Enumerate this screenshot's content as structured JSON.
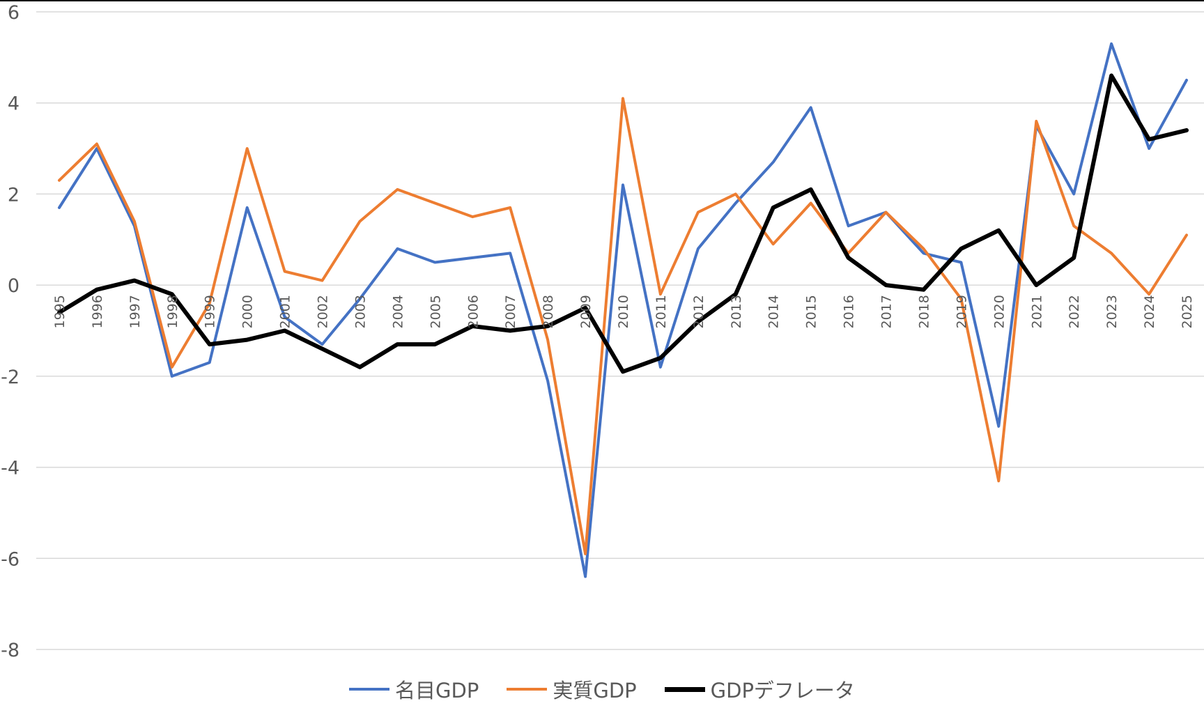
{
  "chart_data": {
    "type": "line",
    "title": "",
    "xlabel": "",
    "ylabel": "",
    "ylim": [
      -8,
      6
    ],
    "yticks": [
      6,
      4,
      2,
      0,
      -2,
      -4,
      -6,
      -8
    ],
    "grid": true,
    "legend_position": "bottom",
    "categories": [
      "1995",
      "1996",
      "1997",
      "1998",
      "1999",
      "2000",
      "2001",
      "2002",
      "2003",
      "2004",
      "2005",
      "2006",
      "2007",
      "2008",
      "2009",
      "2010",
      "2011",
      "2012",
      "2013",
      "2014",
      "2015",
      "2016",
      "2017",
      "2018",
      "2019",
      "2020",
      "2021",
      "2022",
      "2023",
      "2024",
      "2025"
    ],
    "category_labels": [
      "1995",
      "1996",
      "1997",
      "1998",
      "1999",
      "2000",
      "2001",
      "2002",
      "2003",
      "2004",
      "2005",
      "2006",
      "2007",
      "2008",
      "2009",
      "2010",
      "2011",
      "2012",
      "2013",
      "2014",
      "2015",
      "2016",
      "2017",
      "2018",
      "2019",
      "2020",
      "2021",
      "2022",
      "2023",
      "2024",
      "2025"
    ],
    "series": [
      {
        "name": "名目GDP",
        "color": "#4472C4",
        "values": [
          1.7,
          3.0,
          1.3,
          -2.0,
          -1.7,
          1.7,
          -0.7,
          -1.3,
          -0.3,
          0.8,
          0.5,
          0.6,
          0.7,
          -2.1,
          -6.4,
          2.2,
          -1.8,
          0.8,
          1.8,
          2.7,
          3.9,
          1.3,
          1.6,
          0.7,
          0.5,
          -3.1,
          3.5,
          2.0,
          5.3,
          3.0,
          4.5
        ]
      },
      {
        "name": "実質GDP",
        "color": "#ED7D31",
        "values": [
          2.3,
          3.1,
          1.4,
          -1.8,
          -0.4,
          3.0,
          0.3,
          0.1,
          1.4,
          2.1,
          1.8,
          1.5,
          1.7,
          -1.2,
          -5.9,
          4.1,
          -0.2,
          1.6,
          2.0,
          0.9,
          1.8,
          0.7,
          1.6,
          0.8,
          -0.3,
          -4.3,
          3.6,
          1.3,
          0.7,
          -0.2,
          1.1
        ]
      },
      {
        "name": "GDPデフレータ",
        "color": "#000000",
        "values": [
          -0.6,
          -0.1,
          0.1,
          -0.2,
          -1.3,
          -1.2,
          -1.0,
          -1.4,
          -1.8,
          -1.3,
          -1.3,
          -0.9,
          -1.0,
          -0.9,
          -0.5,
          -1.9,
          -1.6,
          -0.8,
          -0.2,
          1.7,
          2.1,
          0.6,
          0.0,
          -0.1,
          0.8,
          1.2,
          0.0,
          0.6,
          4.6,
          3.2,
          3.4
        ]
      }
    ]
  }
}
